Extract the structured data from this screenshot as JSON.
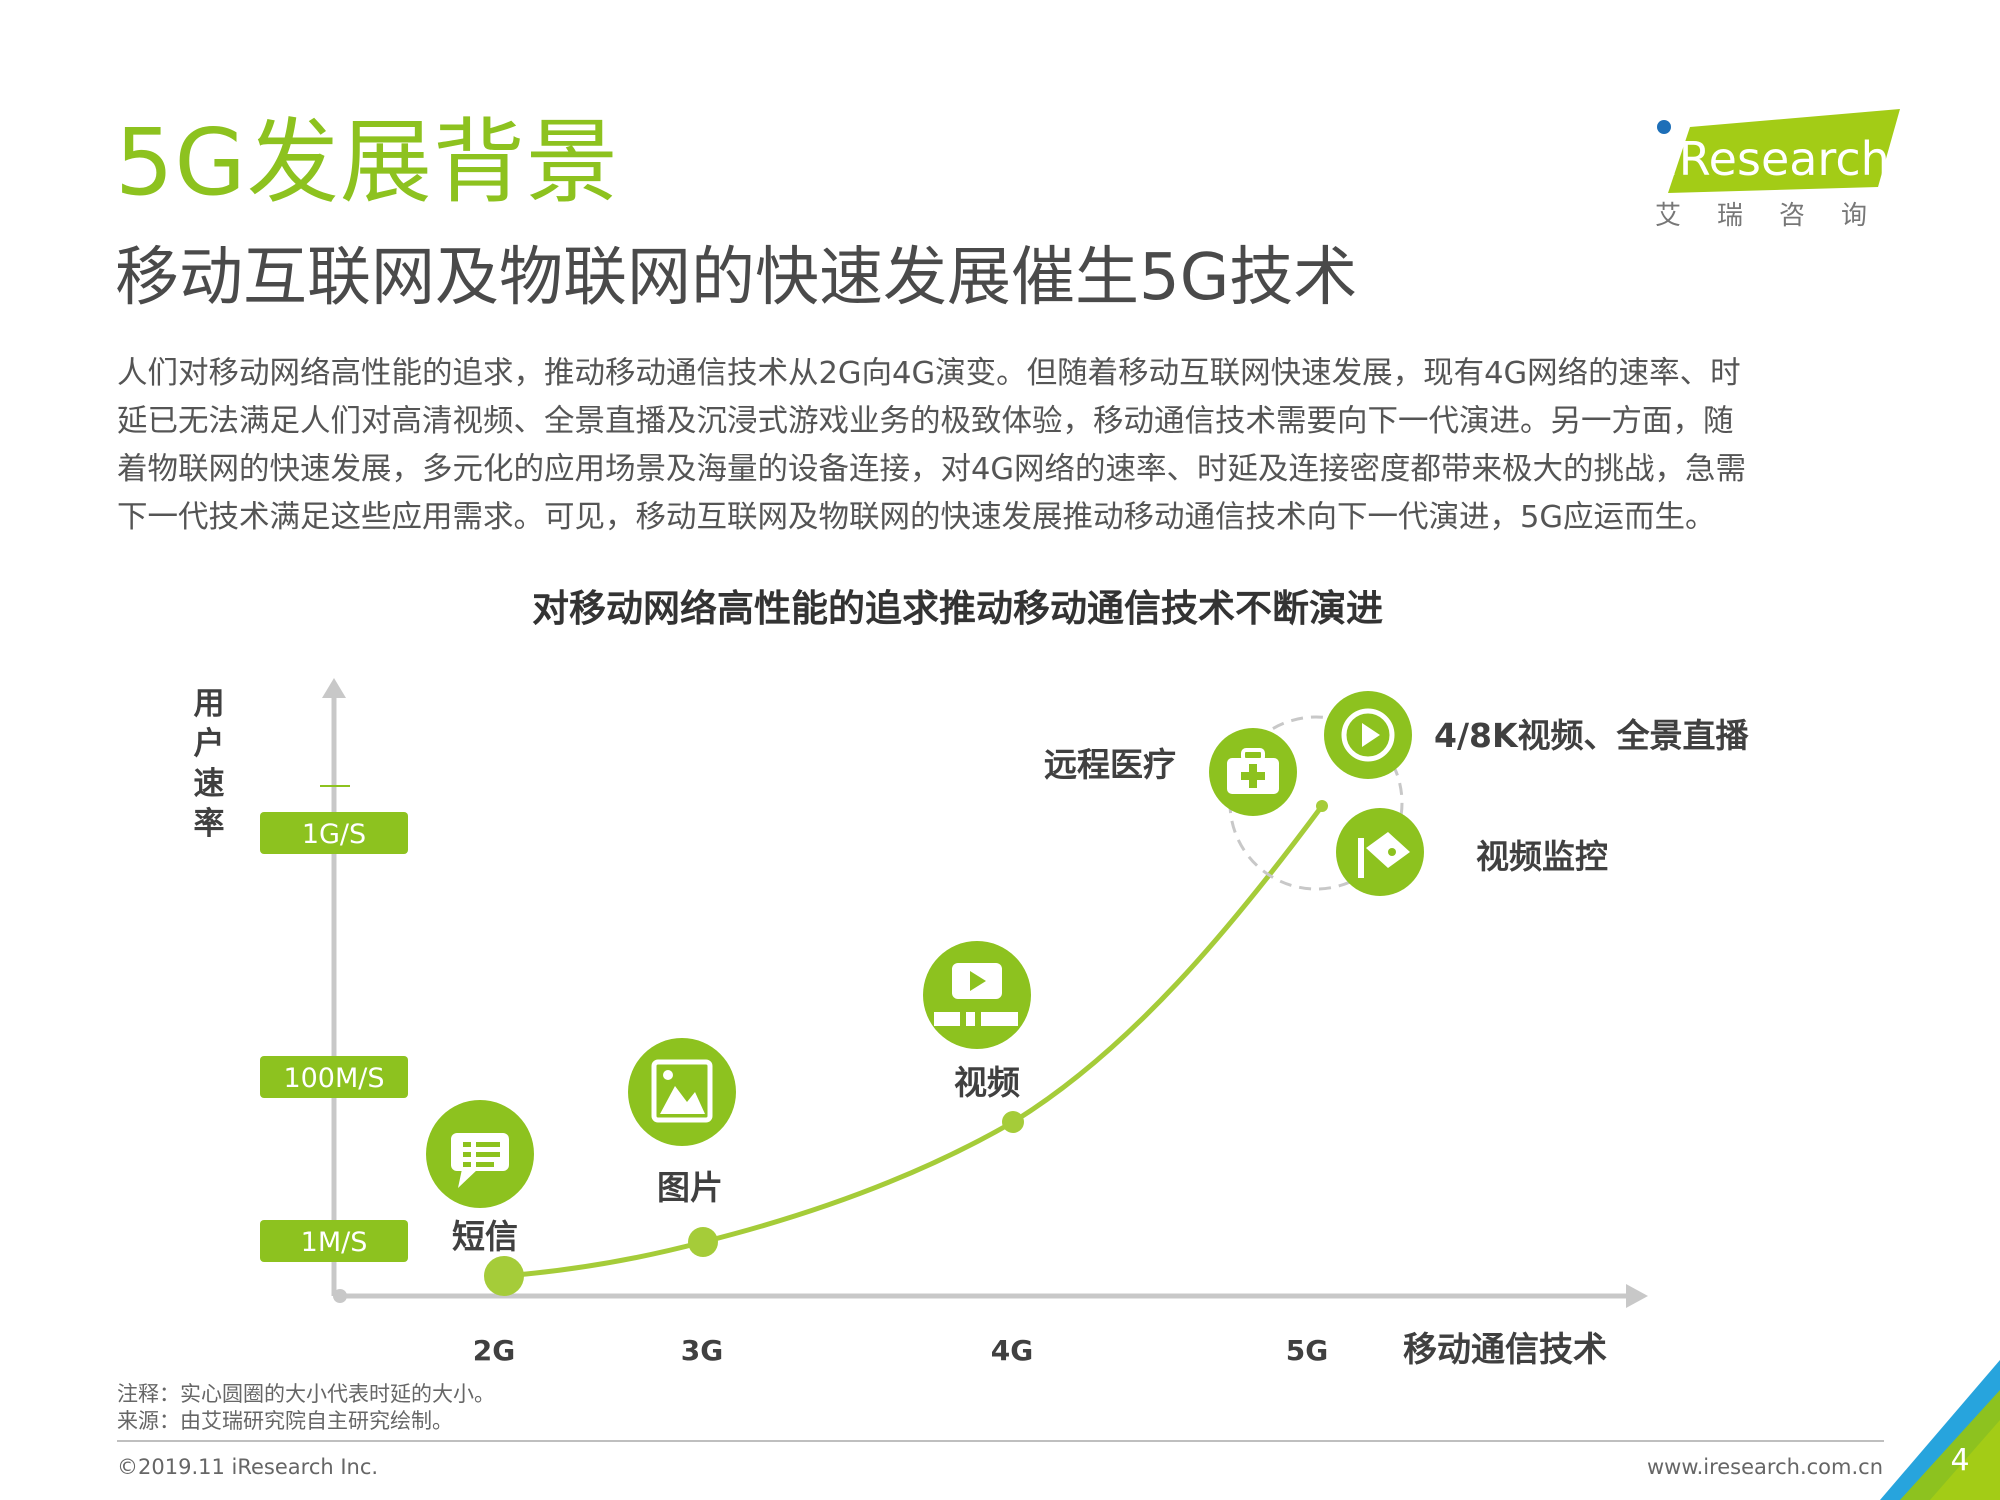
{
  "page": {
    "title": "5G发展背景",
    "subtitle": "移动互联网及物联网的快速发展催生5G技术",
    "body_lines": [
      "人们对移动网络高性能的追求，推动移动通信技术从2G向4G演变。但随着移动互联网快速发展，现有4G网络的速率、时",
      "延已无法满足人们对高清视频、全景直播及沉浸式游戏业务的极致体验，移动通信技术需要向下一代演进。另一方面，随",
      "着物联网的快速发展，多元化的应用场景及海量的设备连接，对4G网络的速率、时延及连接密度都带来极大的挑战，急需",
      "下一代技术满足这些应用需求。可见，移动互联网及物联网的快速发展推动移动通信技术向下一代演进，5G应运而生。"
    ]
  },
  "logo": {
    "brand": "iResearch",
    "sub": "艾瑞咨询"
  },
  "diagram": {
    "title": "对移动网络高性能的追求推动移动通信技术不断演进",
    "y_axis_label": "用户速率",
    "x_axis_label": "移动通信技术",
    "y_ticks": [
      "1G/S",
      "100M/S",
      "1M/S"
    ],
    "x_ticks": [
      "2G",
      "3G",
      "4G",
      "5G"
    ],
    "applications": {
      "sms": "短信",
      "image": "图片",
      "video": "视频",
      "remote_medical": "远程医疗",
      "video_4k8k": "4/8K视频、全景直播",
      "video_surveillance": "视频监控"
    },
    "icons": {
      "sms": "chat-bubble-icon",
      "image": "picture-icon",
      "video": "video-player-icon",
      "remote_medical": "medical-kit-icon",
      "video_4k8k": "play-circle-icon",
      "video_surveillance": "surveillance-camera-icon"
    }
  },
  "note": {
    "line1": "注释：实心圆圈的大小代表时延的大小。",
    "line2": "来源：由艾瑞研究院自主研究绘制。"
  },
  "footer": {
    "copyright": "©2019.11 iResearch Inc.",
    "website": "www.iresearch.com.cn",
    "page_number": "4"
  },
  "colors": {
    "accent_green": "#8dc21f",
    "axis_gray": "#c8c8c8",
    "text_dark": "#404040",
    "corner_blue": "#27a4dd"
  }
}
